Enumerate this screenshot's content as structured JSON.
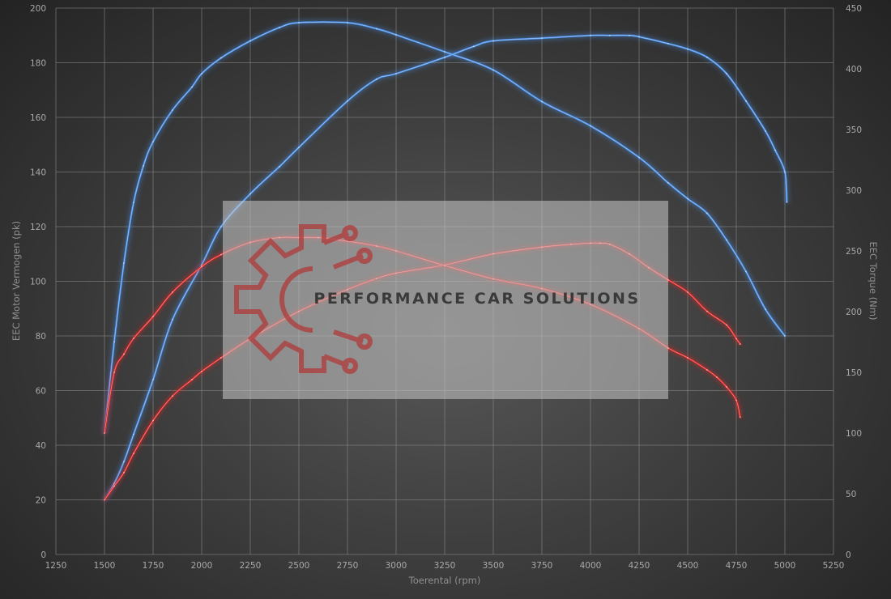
{
  "chart_data": {
    "type": "line",
    "xlabel": "Toerental (rpm)",
    "ylabel": "EEC Motor Vermogen (pk)",
    "y2label": "EEC Torque (Nm)",
    "xlim": [
      1250,
      5250
    ],
    "ylim": [
      0,
      200
    ],
    "y2lim": [
      0,
      450
    ],
    "x_ticks": [
      "1250",
      "1500",
      "1750",
      "2000",
      "2250",
      "2500",
      "2750",
      "3000",
      "3250",
      "3500",
      "3750",
      "4000",
      "4250",
      "4500",
      "4750",
      "5000",
      "5250"
    ],
    "y_ticks": [
      "0",
      "20",
      "40",
      "60",
      "80",
      "100",
      "120",
      "140",
      "160",
      "180",
      "200"
    ],
    "y2_ticks": [
      "0",
      "50",
      "100",
      "150",
      "200",
      "250",
      "300",
      "350",
      "400",
      "450"
    ],
    "grid": true,
    "colors": {
      "tuned": "#4a8fe8",
      "stock": "#e02828"
    },
    "series": [
      {
        "key": "tuned_power",
        "color": "#4a8fe8",
        "axis": "left",
        "x": [
          1500,
          1550,
          1600,
          1650,
          1750,
          1850,
          2000,
          2100,
          2250,
          2400,
          2500,
          2750,
          2900,
          3000,
          3250,
          3400,
          3500,
          3750,
          4000,
          4100,
          4200,
          4250,
          4400,
          4500,
          4600,
          4700,
          4800,
          4900,
          4950,
          5000,
          5010
        ],
        "y": [
          20,
          26,
          34,
          44,
          64,
          86,
          106,
          120,
          132,
          142,
          149,
          166,
          174,
          176,
          182,
          186,
          188,
          189,
          190,
          190,
          190,
          189.5,
          187,
          185,
          182,
          176,
          166,
          155,
          148,
          140,
          129
        ]
      },
      {
        "key": "tuned_torque",
        "color": "#4a8fe8",
        "axis": "right",
        "x": [
          1500,
          1550,
          1600,
          1650,
          1700,
          1750,
          1850,
          1950,
          2000,
          2100,
          2250,
          2400,
          2500,
          2750,
          2900,
          3000,
          3250,
          3500,
          3750,
          4000,
          4250,
          4400,
          4500,
          4600,
          4700,
          4800,
          4900,
          5000
        ],
        "y": [
          100,
          175,
          240,
          290,
          320,
          340,
          366,
          385,
          396,
          409,
          423,
          434,
          438,
          438,
          433,
          428,
          414,
          399,
          373,
          353,
          327,
          306,
          293,
          281,
          259,
          233,
          202,
          180
        ]
      },
      {
        "key": "stock_power",
        "color": "#e02828",
        "axis": "left",
        "x": [
          1500,
          1550,
          1600,
          1650,
          1750,
          1850,
          1950,
          2000,
          2100,
          2250,
          2500,
          2750,
          2900,
          3000,
          3250,
          3500,
          3750,
          3900,
          4000,
          4050,
          4100,
          4200,
          4300,
          4400,
          4500,
          4600,
          4700,
          4750,
          4770
        ],
        "y": [
          20,
          25,
          30,
          37,
          49,
          58,
          64,
          67,
          72,
          79,
          89,
          97,
          101,
          103,
          106,
          110,
          112.5,
          113.5,
          114,
          114,
          113.5,
          110,
          105,
          100.5,
          96,
          89,
          84,
          79,
          77
        ]
      },
      {
        "key": "stock_torque",
        "color": "#e02828",
        "axis": "right",
        "x": [
          1500,
          1550,
          1600,
          1650,
          1750,
          1850,
          2000,
          2100,
          2250,
          2400,
          2500,
          2600,
          2750,
          2900,
          3000,
          3250,
          3500,
          3750,
          4000,
          4250,
          4400,
          4500,
          4600,
          4650,
          4700,
          4750,
          4770
        ],
        "y": [
          100,
          150,
          165,
          178,
          196,
          216,
          237,
          247,
          257,
          261,
          261,
          261,
          258,
          254,
          250,
          238,
          227,
          219,
          206,
          186,
          170,
          162,
          152,
          146,
          138,
          127,
          113
        ]
      }
    ]
  },
  "watermark": {
    "text": "PERFORMANCE CAR SOLUTIONS"
  }
}
